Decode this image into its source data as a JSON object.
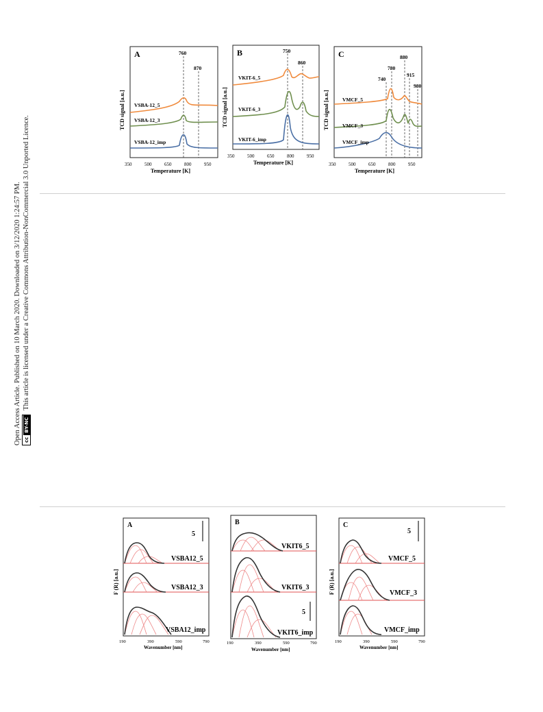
{
  "sidebar": {
    "line1": "Open Access Article. Published on 10 March 2020. Downloaded on 3/12/2020 1:24:57 PM.",
    "line2": "This article is licensed under a Creative Commons Attribution-NonCommercial 3.0 Unported Licence.",
    "badge_cc": "cc",
    "badge_license": "BY-NC"
  },
  "figure_tpr": {
    "y_label": "TCD signal [a.u.]",
    "x_label": "Temperature [K]",
    "x_ticks": [
      "350",
      "500",
      "650",
      "800",
      "950"
    ],
    "panels": [
      {
        "letter": "A",
        "peaks": [
          "760",
          "870"
        ],
        "series": [
          "VSBA-12_5",
          "VSBA-12_3",
          "VSBA-12_imp"
        ]
      },
      {
        "letter": "B",
        "peaks": [
          "750",
          "860"
        ],
        "series": [
          "VKIT-6_5",
          "VKIT-6_3",
          "VKIT-6_imp"
        ]
      },
      {
        "letter": "C",
        "peaks": [
          "740",
          "780",
          "880",
          "915",
          "980"
        ],
        "series": [
          "VMCF_5",
          "VMCF_3",
          "VMCF_imp"
        ]
      }
    ]
  },
  "figure_uv": {
    "y_label": "F (R) [a.u.]",
    "x_label": "Wavenumber [nm]",
    "x_ticks": [
      "190",
      "390",
      "590",
      "790"
    ],
    "panels": [
      {
        "letter": "A",
        "scale": "5",
        "series": [
          "VSBA12_5",
          "VSBA12_3",
          "VSBA12_imp"
        ]
      },
      {
        "letter": "B",
        "scale": "5",
        "series": [
          "VKIT6_5",
          "VKIT6_3",
          "VKIT6_imp"
        ]
      },
      {
        "letter": "C",
        "scale": "5",
        "series": [
          "VMCF_5",
          "VMCF_3",
          "VMCF_imp"
        ]
      }
    ]
  }
}
